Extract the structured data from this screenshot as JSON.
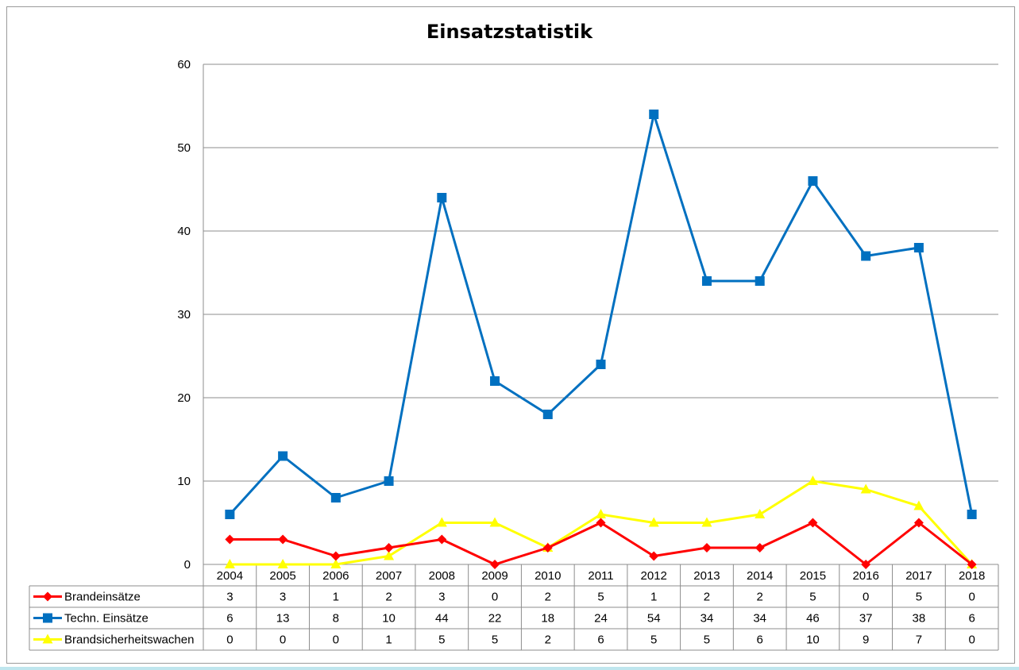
{
  "chart_data": {
    "type": "line",
    "title": "Einsatzstatistik",
    "categories": [
      "2004",
      "2005",
      "2006",
      "2007",
      "2008",
      "2009",
      "2010",
      "2011",
      "2012",
      "2013",
      "2014",
      "2015",
      "2016",
      "2017",
      "2018"
    ],
    "ylim": [
      0,
      60
    ],
    "yticks": [
      0,
      10,
      20,
      30,
      40,
      50,
      60
    ],
    "grid": true,
    "legend": "data-table-left",
    "series": [
      {
        "name": "Brandeinsätze",
        "color": "#ff0000",
        "marker": "diamond",
        "values": [
          3,
          3,
          1,
          2,
          3,
          0,
          2,
          5,
          1,
          2,
          2,
          5,
          0,
          5,
          0
        ]
      },
      {
        "name": "Techn. Einsätze",
        "color": "#0070c0",
        "marker": "square",
        "values": [
          6,
          13,
          8,
          10,
          44,
          22,
          18,
          24,
          54,
          34,
          34,
          46,
          37,
          38,
          6
        ]
      },
      {
        "name": "Brandsicherheitswachen",
        "color": "#ffff00",
        "marker": "triangle",
        "values": [
          0,
          0,
          0,
          1,
          5,
          5,
          2,
          6,
          5,
          5,
          6,
          10,
          9,
          7,
          0
        ]
      }
    ]
  }
}
